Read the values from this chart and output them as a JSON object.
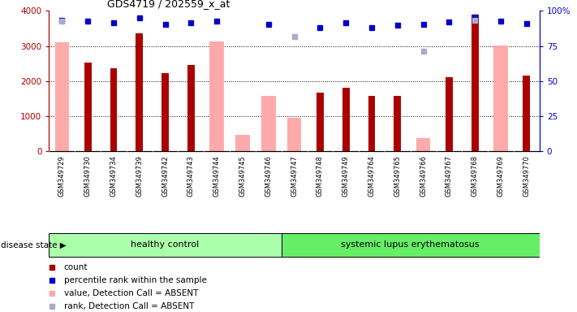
{
  "title": "GDS4719 / 202559_x_at",
  "samples": [
    "GSM349729",
    "GSM349730",
    "GSM349734",
    "GSM349739",
    "GSM349742",
    "GSM349743",
    "GSM349744",
    "GSM349745",
    "GSM349746",
    "GSM349747",
    "GSM349748",
    "GSM349749",
    "GSM349764",
    "GSM349765",
    "GSM349766",
    "GSM349767",
    "GSM349768",
    "GSM349769",
    "GSM349770"
  ],
  "count_values": [
    null,
    2520,
    2370,
    3360,
    2220,
    2460,
    null,
    null,
    null,
    null,
    1670,
    1810,
    1580,
    1590,
    null,
    2110,
    3900,
    null,
    2160
  ],
  "value_absent": [
    3100,
    null,
    null,
    null,
    null,
    null,
    3130,
    480,
    1590,
    960,
    null,
    null,
    null,
    null,
    380,
    null,
    null,
    3020,
    null
  ],
  "percentile_rank": [
    3730,
    3720,
    3660,
    3800,
    3610,
    3670,
    3720,
    null,
    3620,
    null,
    3520,
    3660,
    3520,
    3590,
    3620,
    3680,
    3830,
    3720,
    3630
  ],
  "rank_absent": [
    3720,
    null,
    null,
    null,
    null,
    null,
    null,
    null,
    null,
    3280,
    null,
    null,
    null,
    null,
    2850,
    null,
    3740,
    null,
    null
  ],
  "healthy_count": 9,
  "ylim_left": [
    0,
    4000
  ],
  "yticks_left": [
    0,
    1000,
    2000,
    3000,
    4000
  ],
  "yticks_right": [
    0,
    25,
    50,
    75,
    100
  ],
  "ylabel_right_labels": [
    "0",
    "25",
    "50",
    "75",
    "100%"
  ],
  "color_count": "#aa0000",
  "color_percentile": "#0000cc",
  "color_value_absent": "#ffaaaa",
  "color_rank_absent": "#aaaacc",
  "healthy_color": "#aaffaa",
  "sle_color": "#66ee66",
  "legend_items": [
    {
      "label": "count",
      "color": "#aa0000"
    },
    {
      "label": "percentile rank within the sample",
      "color": "#0000cc"
    },
    {
      "label": "value, Detection Call = ABSENT",
      "color": "#ffaaaa"
    },
    {
      "label": "rank, Detection Call = ABSENT",
      "color": "#aaaacc"
    }
  ]
}
